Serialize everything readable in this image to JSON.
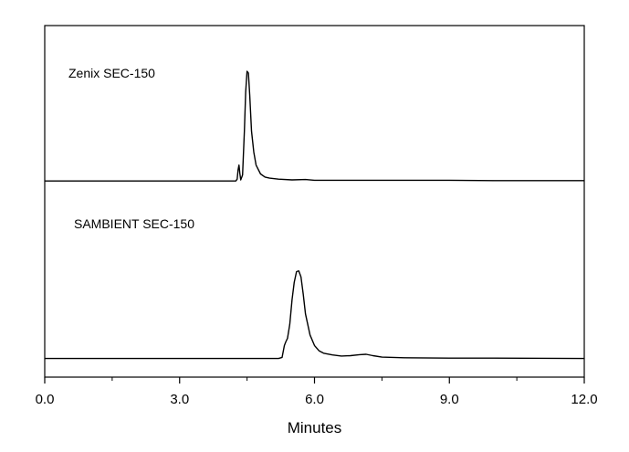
{
  "chart_data": {
    "type": "line",
    "title": "",
    "xlabel": "Minutes",
    "ylabel": "",
    "xlim": [
      0,
      12
    ],
    "ylim": [
      0,
      1
    ],
    "x_ticks": [
      0,
      3,
      6,
      9,
      12
    ],
    "x_tick_labels": [
      "0.0",
      "3.0",
      "6.0",
      "9.0",
      "12.0"
    ],
    "x_minor_ticks": [
      1.5,
      4.5,
      7.5,
      10.5
    ],
    "grid": false,
    "legend": "none",
    "line_color": "#000000",
    "annotations": [
      {
        "text": "Zenix SEC-150",
        "series": 0
      },
      {
        "text": "SAMBIENT SEC-150",
        "series": 1
      }
    ],
    "series": [
      {
        "name": "Zenix SEC-150",
        "points": [
          [
            0.0,
            0.558
          ],
          [
            4.25,
            0.558
          ],
          [
            4.28,
            0.563
          ],
          [
            4.3,
            0.59
          ],
          [
            4.32,
            0.603
          ],
          [
            4.34,
            0.58
          ],
          [
            4.36,
            0.561
          ],
          [
            4.4,
            0.575
          ],
          [
            4.44,
            0.7
          ],
          [
            4.47,
            0.81
          ],
          [
            4.5,
            0.87
          ],
          [
            4.53,
            0.865
          ],
          [
            4.56,
            0.8
          ],
          [
            4.6,
            0.7
          ],
          [
            4.65,
            0.64
          ],
          [
            4.7,
            0.603
          ],
          [
            4.8,
            0.578
          ],
          [
            4.9,
            0.569
          ],
          [
            5.0,
            0.566
          ],
          [
            5.2,
            0.563
          ],
          [
            5.5,
            0.561
          ],
          [
            5.8,
            0.562
          ],
          [
            6.0,
            0.56
          ],
          [
            7.0,
            0.56
          ],
          [
            8.0,
            0.56
          ],
          [
            9.0,
            0.56
          ],
          [
            10.0,
            0.559
          ],
          [
            12.0,
            0.559
          ]
        ]
      },
      {
        "name": "SAMBIENT SEC-150",
        "points": [
          [
            0.0,
            0.053
          ],
          [
            5.2,
            0.053
          ],
          [
            5.28,
            0.056
          ],
          [
            5.33,
            0.09
          ],
          [
            5.36,
            0.1
          ],
          [
            5.4,
            0.11
          ],
          [
            5.45,
            0.15
          ],
          [
            5.5,
            0.22
          ],
          [
            5.55,
            0.27
          ],
          [
            5.6,
            0.3
          ],
          [
            5.65,
            0.302
          ],
          [
            5.7,
            0.285
          ],
          [
            5.75,
            0.235
          ],
          [
            5.8,
            0.18
          ],
          [
            5.9,
            0.12
          ],
          [
            6.0,
            0.09
          ],
          [
            6.1,
            0.075
          ],
          [
            6.2,
            0.068
          ],
          [
            6.4,
            0.063
          ],
          [
            6.6,
            0.06
          ],
          [
            6.8,
            0.061
          ],
          [
            7.0,
            0.064
          ],
          [
            7.15,
            0.065
          ],
          [
            7.3,
            0.061
          ],
          [
            7.5,
            0.057
          ],
          [
            8.0,
            0.055
          ],
          [
            9.0,
            0.054
          ],
          [
            10.0,
            0.054
          ],
          [
            12.0,
            0.053
          ]
        ]
      }
    ]
  }
}
